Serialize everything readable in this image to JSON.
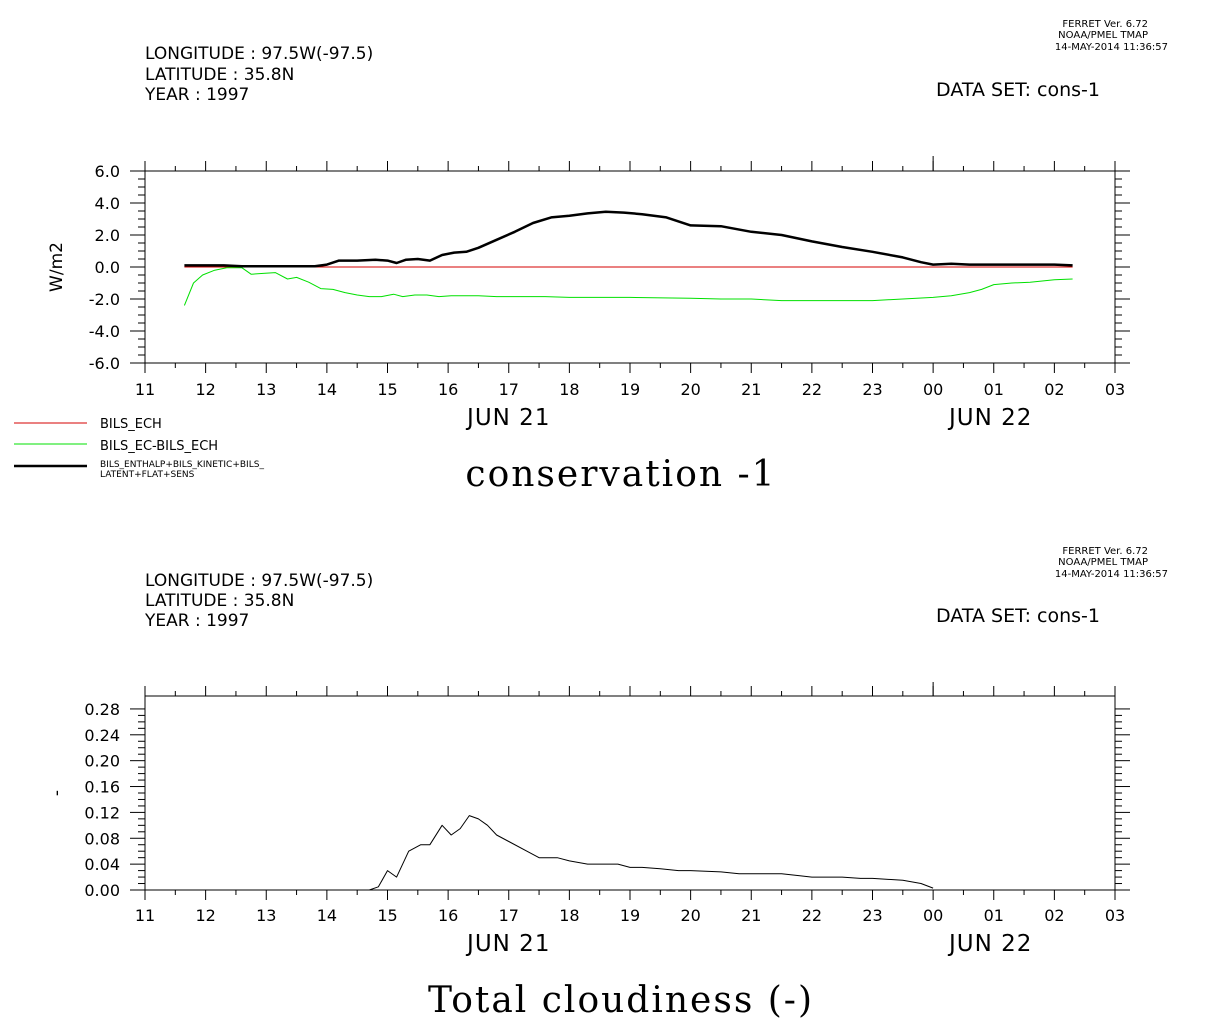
{
  "header": {
    "ferret_ver": "FERRET Ver. 6.72",
    "ferret_org": "NOAA/PMEL TMAP",
    "ferret_date": "14-MAY-2014 11:36:57",
    "longitude": "LONGITUDE : 97.5W(-97.5)",
    "latitude": "LATITUDE : 35.8N",
    "year": "YEAR : 1997",
    "dataset": "DATA SET: cons-1"
  },
  "colors": {
    "bils_ech": "#d40000",
    "bils_diff": "#00e000",
    "bils_sum": "#000000",
    "axis": "#000000"
  },
  "chart_data": [
    {
      "type": "line",
      "title": "conservation -1",
      "xlabel": "",
      "ylabel": "W/m2",
      "x_ticks": [
        "11",
        "12",
        "13",
        "14",
        "15",
        "16",
        "17",
        "18",
        "19",
        "20",
        "21",
        "22",
        "23",
        "00",
        "01",
        "02",
        "03"
      ],
      "date_labels": [
        "JUN 21",
        "JUN 22"
      ],
      "xlim": [
        11,
        27
      ],
      "ylim": [
        -6,
        6
      ],
      "y_ticks": [
        "6.0",
        "4.0",
        "2.0",
        "0.0",
        "-2.0",
        "-4.0",
        "-6.0"
      ],
      "legend": [
        "BILS_ECH",
        "BILS_EC-BILS_ECH",
        "BILS_ENTHALP+BILS_KINETIC+BILS_",
        "LATENT+FLAT+SENS"
      ],
      "series": [
        {
          "name": "BILS_ECH",
          "x": [
            11.65,
            26.3
          ],
          "y": [
            0.0,
            0.0
          ]
        },
        {
          "name": "BILS_EC-BILS_ECH",
          "x": [
            11.65,
            11.8,
            11.95,
            12.15,
            12.35,
            12.6,
            12.75,
            12.95,
            13.15,
            13.35,
            13.5,
            13.7,
            13.9,
            14.1,
            14.3,
            14.5,
            14.7,
            14.9,
            15.1,
            15.25,
            15.45,
            15.65,
            15.85,
            16.05,
            16.3,
            16.5,
            16.8,
            17.2,
            17.6,
            18.0,
            18.5,
            19.0,
            20.0,
            20.5,
            21.0,
            21.5,
            22.0,
            22.5,
            23.0,
            23.5,
            24.0,
            24.3,
            24.6,
            24.8,
            25.0,
            25.3,
            25.6,
            26.0,
            26.3
          ],
          "y": [
            -2.4,
            -1.0,
            -0.5,
            -0.2,
            -0.05,
            -0.05,
            -0.45,
            -0.4,
            -0.35,
            -0.75,
            -0.65,
            -0.95,
            -1.35,
            -1.4,
            -1.6,
            -1.75,
            -1.85,
            -1.85,
            -1.7,
            -1.85,
            -1.75,
            -1.75,
            -1.85,
            -1.8,
            -1.8,
            -1.8,
            -1.85,
            -1.85,
            -1.85,
            -1.9,
            -1.9,
            -1.9,
            -1.95,
            -2.0,
            -2.0,
            -2.1,
            -2.1,
            -2.1,
            -2.1,
            -2.0,
            -1.9,
            -1.8,
            -1.6,
            -1.4,
            -1.1,
            -1.0,
            -0.95,
            -0.8,
            -0.75
          ]
        },
        {
          "name": "BILS_ENTHALP+BILS_KINETIC+BILS_LATENT+FLAT+SENS",
          "x": [
            11.65,
            12.0,
            12.3,
            12.6,
            13.0,
            13.5,
            13.8,
            14.0,
            14.2,
            14.5,
            14.8,
            15.0,
            15.15,
            15.3,
            15.5,
            15.7,
            15.9,
            16.1,
            16.3,
            16.5,
            16.8,
            17.1,
            17.4,
            17.7,
            18.0,
            18.3,
            18.6,
            18.9,
            19.2,
            19.6,
            20.0,
            20.5,
            21.0,
            21.5,
            22.0,
            22.5,
            23.0,
            23.5,
            23.8,
            24.0,
            24.3,
            24.6,
            25.0,
            25.5,
            26.0,
            26.3
          ],
          "y": [
            0.1,
            0.1,
            0.1,
            0.05,
            0.05,
            0.05,
            0.05,
            0.15,
            0.4,
            0.4,
            0.45,
            0.4,
            0.25,
            0.45,
            0.5,
            0.4,
            0.75,
            0.9,
            0.95,
            1.2,
            1.7,
            2.2,
            2.75,
            3.1,
            3.2,
            3.35,
            3.45,
            3.4,
            3.3,
            3.1,
            2.6,
            2.55,
            2.2,
            2.0,
            1.6,
            1.25,
            0.95,
            0.6,
            0.3,
            0.15,
            0.2,
            0.15,
            0.15,
            0.15,
            0.15,
            0.1
          ]
        }
      ]
    },
    {
      "type": "line",
      "title": "Total cloudiness (-)",
      "xlabel": "",
      "ylabel": "-",
      "x_ticks": [
        "11",
        "12",
        "13",
        "14",
        "15",
        "16",
        "17",
        "18",
        "19",
        "20",
        "21",
        "22",
        "23",
        "00",
        "01",
        "02",
        "03"
      ],
      "date_labels": [
        "JUN 21",
        "JUN 22"
      ],
      "xlim": [
        11,
        27
      ],
      "ylim": [
        0,
        0.3
      ],
      "y_ticks": [
        "0.28",
        "0.24",
        "0.20",
        "0.16",
        "0.12",
        "0.08",
        "0.04",
        "0.00"
      ],
      "series": [
        {
          "x": [
            14.7,
            14.85,
            15.0,
            15.15,
            15.35,
            15.55,
            15.7,
            15.9,
            16.05,
            16.2,
            16.35,
            16.5,
            16.65,
            16.8,
            17.0,
            17.3,
            17.5,
            17.8,
            18.0,
            18.3,
            18.6,
            18.8,
            19.0,
            19.2,
            19.5,
            19.8,
            20.0,
            20.5,
            20.8,
            21.0,
            21.5,
            21.8,
            22.0,
            22.5,
            22.8,
            23.0,
            23.5,
            23.8,
            24.0
          ],
          "y": [
            0.0,
            0.005,
            0.03,
            0.02,
            0.06,
            0.07,
            0.07,
            0.1,
            0.085,
            0.095,
            0.115,
            0.11,
            0.1,
            0.085,
            0.075,
            0.06,
            0.05,
            0.05,
            0.045,
            0.04,
            0.04,
            0.04,
            0.035,
            0.035,
            0.033,
            0.03,
            0.03,
            0.028,
            0.025,
            0.025,
            0.025,
            0.022,
            0.02,
            0.02,
            0.018,
            0.018,
            0.015,
            0.01,
            0.003
          ]
        }
      ]
    }
  ]
}
